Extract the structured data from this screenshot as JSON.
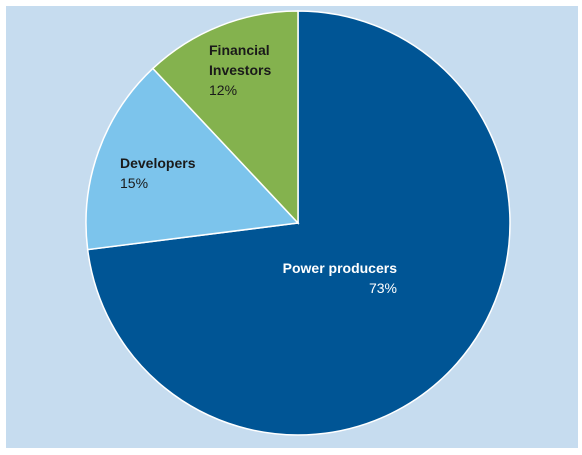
{
  "chart_data": {
    "type": "pie",
    "title": "",
    "slices": [
      {
        "name": "Power producers",
        "label_lines": [
          "Power producers"
        ],
        "value": 73,
        "value_label": "73%",
        "color": "#005595",
        "text_color": "#ffffff"
      },
      {
        "name": "Developers",
        "label_lines": [
          "Developers"
        ],
        "value": 15,
        "value_label": "15%",
        "color": "#7cc4ec",
        "text_color": "#1a1a1a"
      },
      {
        "name": "Financial Investors",
        "label_lines": [
          "Financial",
          "Investors"
        ],
        "value": 12,
        "value_label": "12%",
        "color": "#84b24e",
        "text_color": "#1a1a1a"
      }
    ],
    "start": "12 o'clock",
    "direction": "clockwise",
    "legend": "none",
    "background": "#c6dcef",
    "separator_color": "#ffffff"
  }
}
